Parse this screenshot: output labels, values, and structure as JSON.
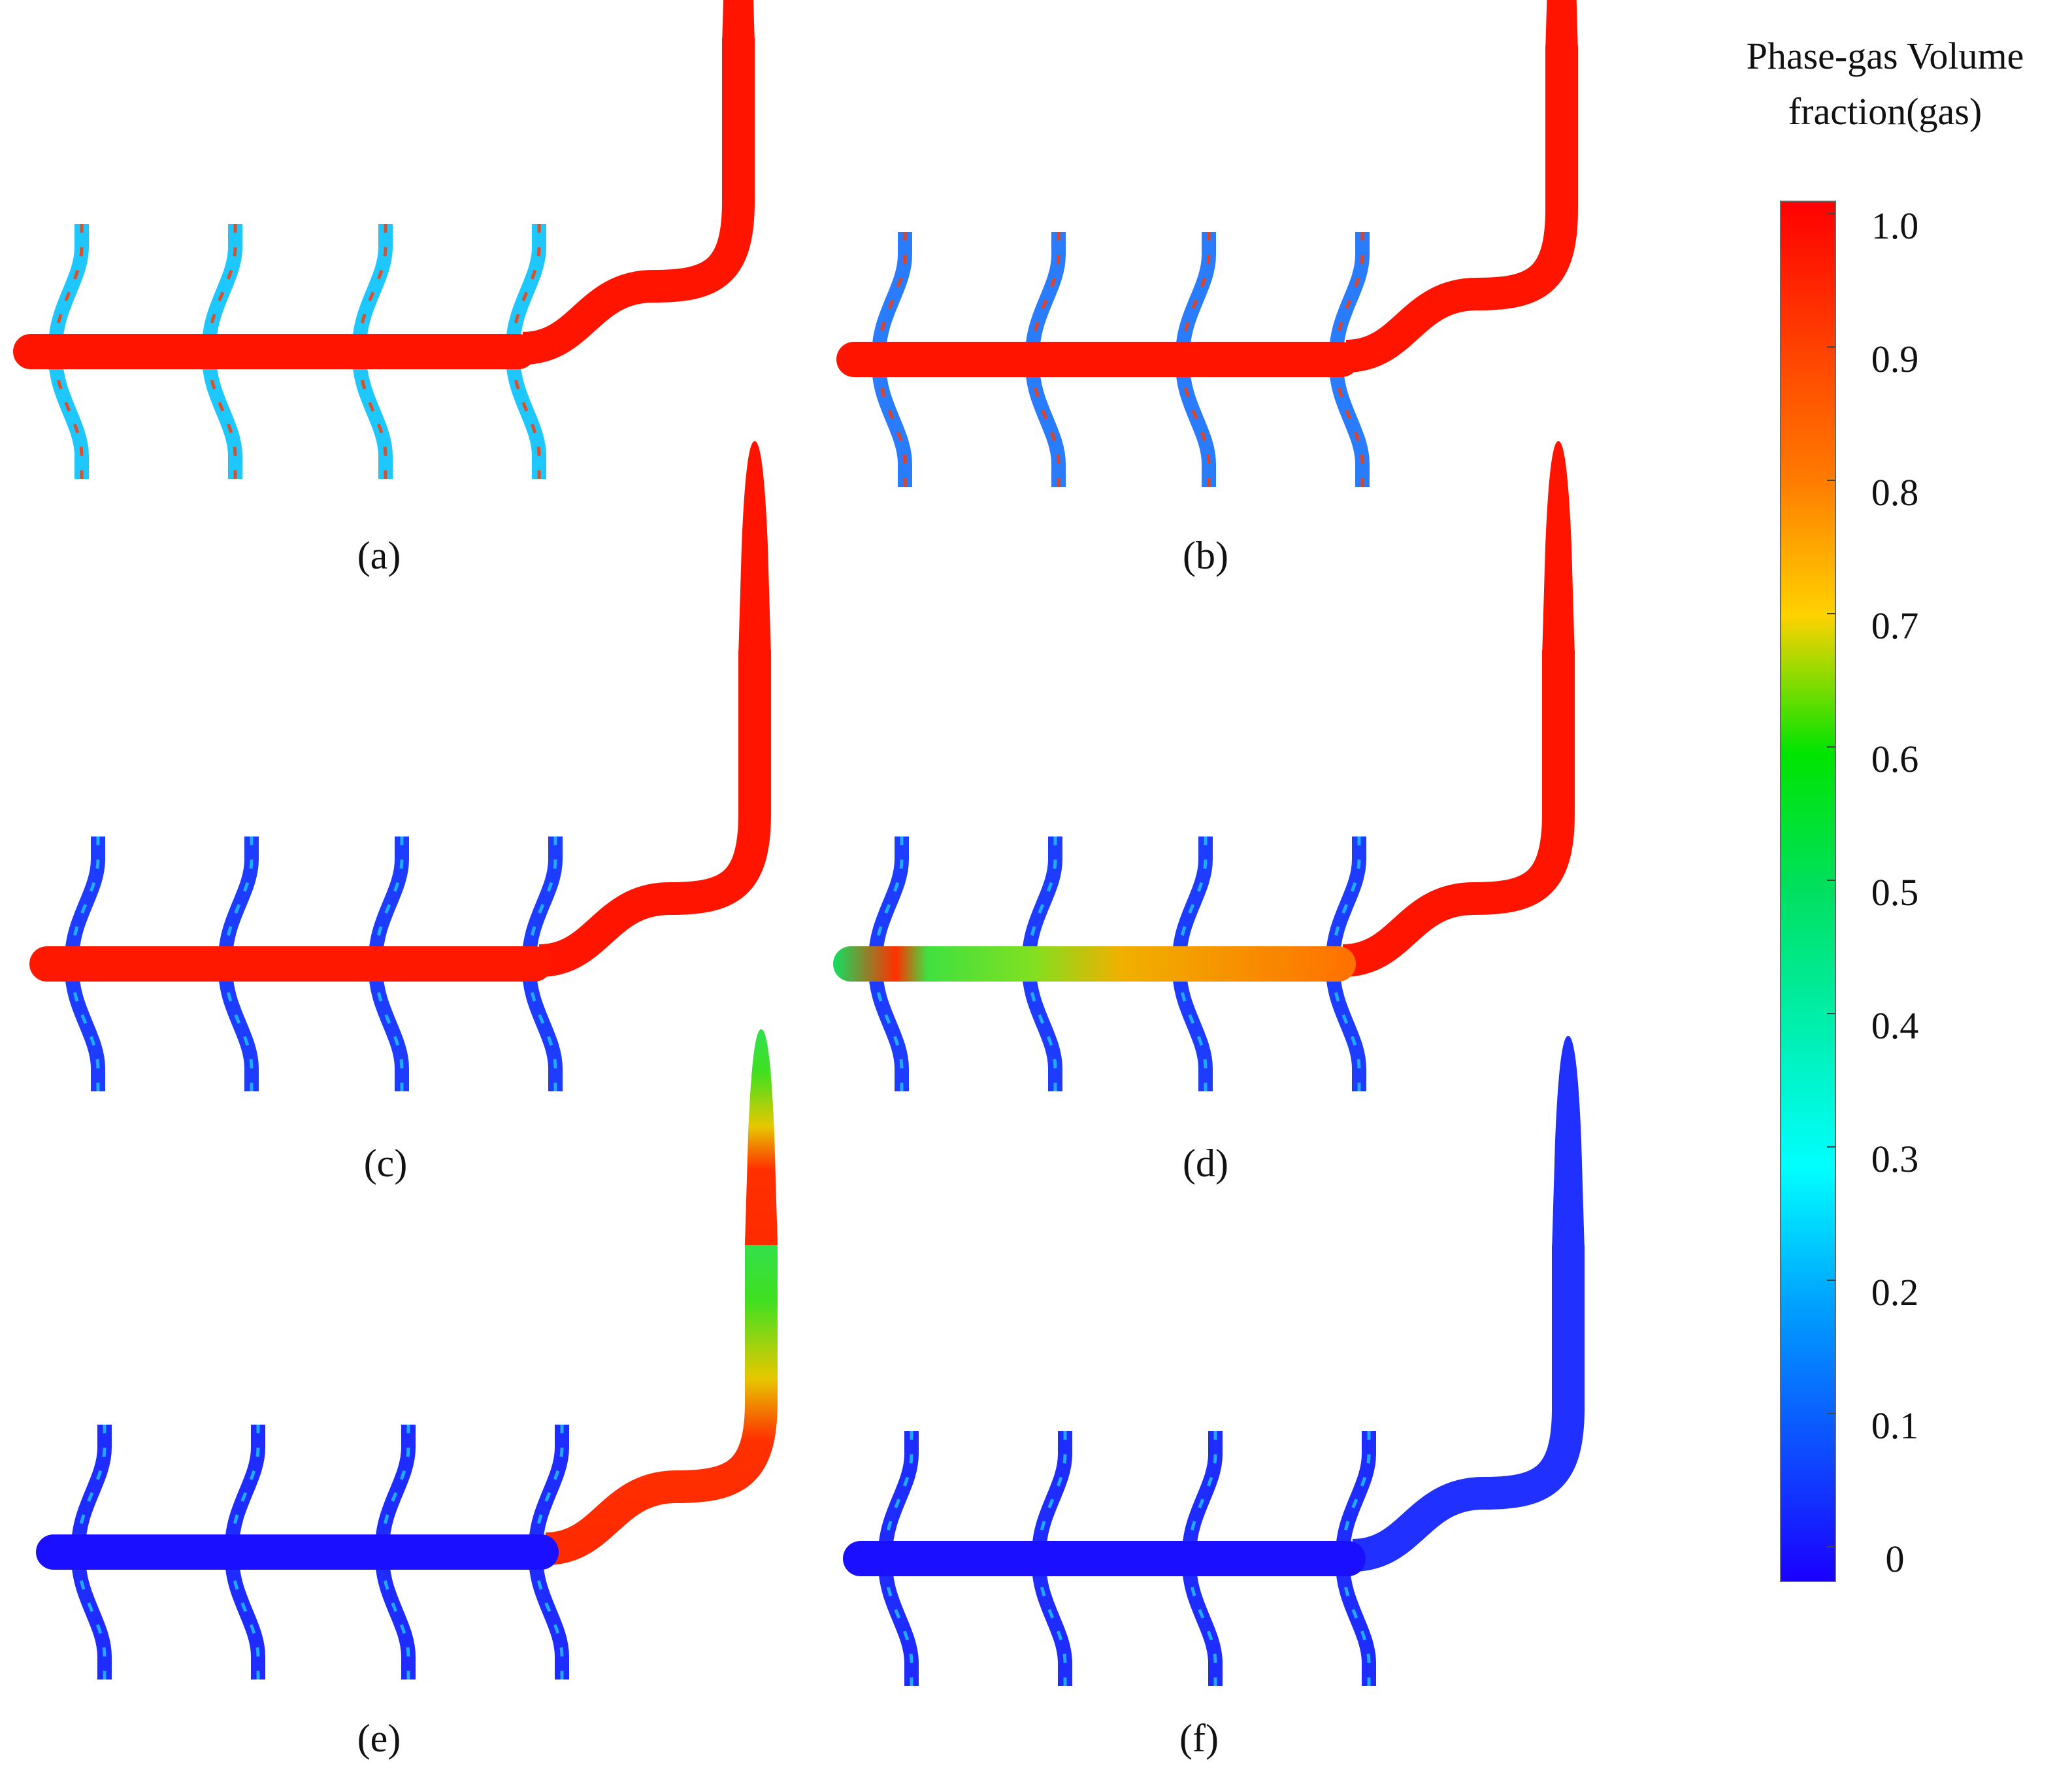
{
  "colorbar": {
    "title_line1": "Phase-gas Volume",
    "title_line2": "fraction(gas)",
    "ticks": [
      "1.0",
      "0.9",
      "0.8",
      "0.7",
      "0.6",
      "0.5",
      "0.4",
      "0.3",
      "0.2",
      "0.1",
      "0"
    ],
    "stops": [
      {
        "offset": "0%",
        "color": "#ff0000"
      },
      {
        "offset": "20%",
        "color": "#ff7a00"
      },
      {
        "offset": "30%",
        "color": "#ffd200"
      },
      {
        "offset": "40%",
        "color": "#00e400"
      },
      {
        "offset": "50%",
        "color": "#00e060"
      },
      {
        "offset": "70%",
        "color": "#00ffff"
      },
      {
        "offset": "80%",
        "color": "#00a0ff"
      },
      {
        "offset": "100%",
        "color": "#1a00ff"
      }
    ]
  },
  "panels": [
    {
      "label": "(a)",
      "pipe_color": "#ff1400",
      "riser_color": "#ff1400",
      "branch_color": "#1ec8ff",
      "branch_accent": "#ff3a00"
    },
    {
      "label": "(b)",
      "pipe_color": "#ff1400",
      "riser_color": "#ff1400",
      "branch_color": "#2a7cff",
      "branch_accent": "#ff3a00"
    },
    {
      "label": "(c)",
      "pipe_color": "#ff1800",
      "riser_color": "#ff1400",
      "branch_color": "#1e3cff",
      "branch_accent": "#20c0ff"
    },
    {
      "label": "(d)",
      "pipe_color": "#b8e000",
      "riser_color": "#ff1400",
      "branch_color": "#1e3cff",
      "branch_accent": "#20c0ff"
    },
    {
      "label": "(e)",
      "pipe_color": "#1a10ff",
      "riser_color": "#d8d000",
      "branch_color": "#1e2cff",
      "branch_accent": "#20c0ff"
    },
    {
      "label": "(f)",
      "pipe_color": "#1a10ff",
      "riser_color": "#2030ff",
      "branch_color": "#1e2cff",
      "branch_accent": "#20c0ff"
    }
  ]
}
